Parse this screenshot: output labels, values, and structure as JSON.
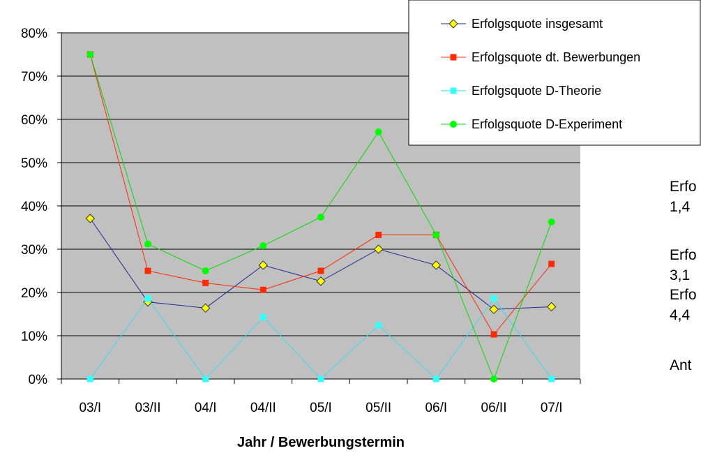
{
  "chart_data": {
    "type": "line",
    "title": "",
    "xlabel": "Jahr / Bewerbungstermin",
    "ylabel": "",
    "categories": [
      "03/I",
      "03/II",
      "04/I",
      "04/II",
      "05/I",
      "05/II",
      "06/I",
      "06/II",
      "07/I"
    ],
    "ylim": [
      0,
      0.8
    ],
    "yticks": [
      0,
      0.1,
      0.2,
      0.3,
      0.4,
      0.5,
      0.6,
      0.7,
      0.8
    ],
    "ytick_labels": [
      "0%",
      "10%",
      "20%",
      "30%",
      "40%",
      "50%",
      "60%",
      "70%",
      "80%"
    ],
    "grid": true,
    "legend_position": "top-right",
    "series": [
      {
        "name": "Erfolgsquote insgesamt",
        "color": "#1f2a8c",
        "marker": "diamond",
        "marker_color": "#ffff00",
        "values": [
          0.371,
          0.178,
          0.164,
          0.263,
          0.226,
          0.3,
          0.263,
          0.161,
          0.167
        ]
      },
      {
        "name": "Erfolgsquote dt. Bewerbungen",
        "color": "#ff2a00",
        "marker": "square",
        "marker_color": "#ff2a00",
        "values": [
          0.75,
          0.25,
          0.222,
          0.206,
          0.25,
          0.333,
          0.333,
          0.103,
          0.266
        ]
      },
      {
        "name": "Erfolgsquote D-Theorie",
        "color": "#33ddee",
        "marker": "square",
        "marker_color": "#33ffff",
        "values": [
          0.0,
          0.186,
          0.0,
          0.143,
          0.0,
          0.124,
          0.0,
          0.186,
          0.0
        ]
      },
      {
        "name": "Erfolgsquote D-Experiment",
        "color": "#00dd00",
        "marker": "circle",
        "marker_color": "#00ff00",
        "values": [
          0.75,
          0.312,
          0.25,
          0.308,
          0.374,
          0.571,
          0.333,
          0.0,
          0.363
        ]
      }
    ]
  },
  "side_text": [
    "Erfo",
    "1,4",
    "Erfo",
    "3,1",
    "Erfo",
    "4,4",
    "Ant"
  ]
}
